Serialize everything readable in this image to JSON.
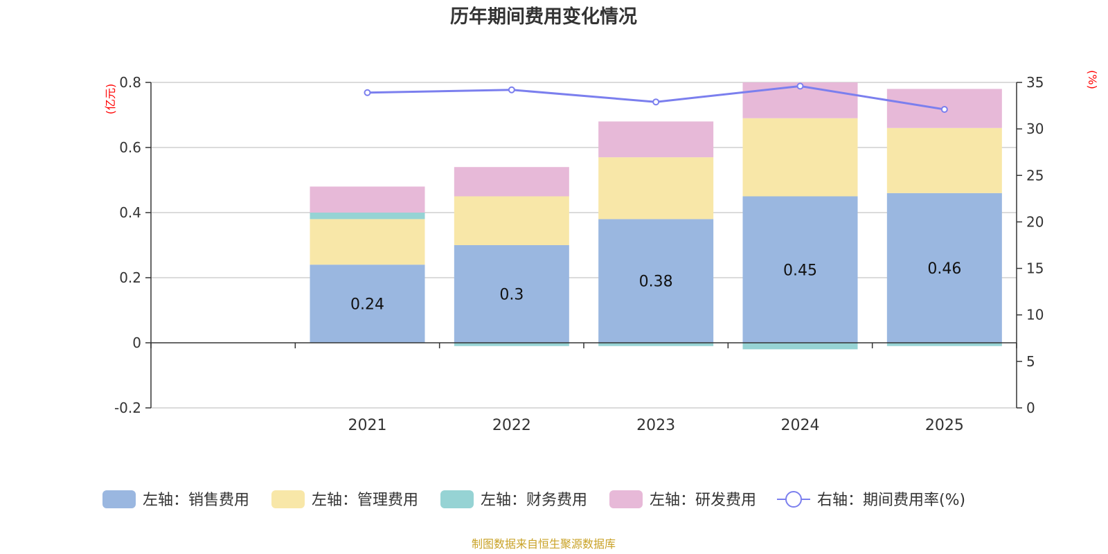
{
  "chart_data": {
    "type": "bar",
    "title": "历年期间费用变化情况",
    "categories": [
      "",
      "2021",
      "2022",
      "2023",
      "2024",
      "2025"
    ],
    "y_left": {
      "unit": "(亿元)",
      "ylim": [
        -0.2,
        0.8
      ],
      "ticks": [
        "-0.2",
        "0",
        "0.2",
        "0.4",
        "0.6",
        "0.8"
      ],
      "tick_values": [
        -0.2,
        0,
        0.2,
        0.4,
        0.6,
        0.8
      ]
    },
    "y_right": {
      "unit": "(%)",
      "ylim": [
        0,
        35
      ],
      "ticks": [
        "0",
        "5",
        "10",
        "15",
        "20",
        "25",
        "30",
        "35"
      ],
      "tick_values": [
        0,
        5,
        10,
        15,
        20,
        25,
        30,
        35
      ]
    },
    "series": [
      {
        "name": "左轴：销售费用",
        "type": "bar",
        "axis": "left",
        "color": "#9ab7e0",
        "values": [
          null,
          0.24,
          0.3,
          0.38,
          0.45,
          0.46
        ],
        "labels": [
          "",
          "0.24",
          "0.3",
          "0.38",
          "0.45",
          "0.46"
        ]
      },
      {
        "name": "左轴：管理费用",
        "type": "bar",
        "axis": "left",
        "color": "#f8e7a8",
        "values": [
          null,
          0.14,
          0.15,
          0.19,
          0.24,
          0.2
        ]
      },
      {
        "name": "左轴：财务费用",
        "type": "bar",
        "axis": "left",
        "color": "#96d3d4",
        "values": [
          null,
          0.02,
          -0.01,
          -0.01,
          -0.02,
          -0.01
        ]
      },
      {
        "name": "左轴：研发费用",
        "type": "bar",
        "axis": "left",
        "color": "#e7b9d8",
        "values": [
          null,
          0.08,
          0.09,
          0.11,
          0.11,
          0.12
        ]
      },
      {
        "name": "右轴：期间费用率(%)",
        "type": "line",
        "axis": "right",
        "color": "#7b7fee",
        "values": [
          null,
          33.9,
          34.2,
          32.9,
          34.6,
          32.1
        ]
      }
    ],
    "legend_position": "bottom",
    "grid": true
  },
  "source": "制图数据来自恒生聚源数据库"
}
